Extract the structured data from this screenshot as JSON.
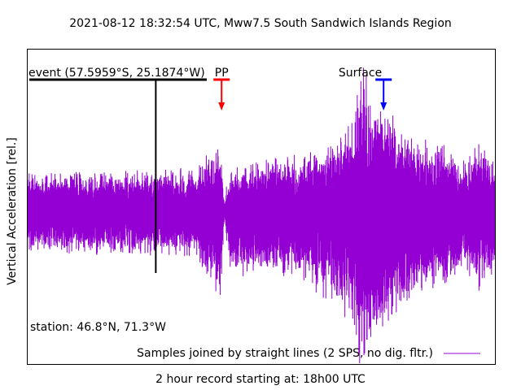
{
  "chart_data": {
    "type": "line",
    "title": "2021-08-12 18:32:54 UTC, Mww7.5 South Sandwich Islands Region",
    "xlabel": "2 hour record starting at: 18h00 UTC",
    "ylabel": "Vertical Acceleration [rel.]",
    "xlim": [
      0,
      120
    ],
    "ylim": [
      -1,
      1
    ],
    "grid": false,
    "legend_position": "bottom-right",
    "series": [
      {
        "name": "Samples joined by straight lines (2 SPS, no dig. fltr.)",
        "color": "#9400d3",
        "envelope": {
          "x": [
            0,
            25,
            43,
            44,
            48,
            49.5,
            50.5,
            52,
            70,
            76,
            80,
            84,
            85.5,
            88,
            92,
            96,
            100,
            104,
            108,
            112,
            116,
            120
          ],
          "upper": [
            0.25,
            0.26,
            0.28,
            0.3,
            0.45,
            0.38,
            0.08,
            0.3,
            0.36,
            0.42,
            0.48,
            0.65,
            1.0,
            0.78,
            0.7,
            0.55,
            0.5,
            0.45,
            0.4,
            0.32,
            0.45,
            0.35
          ],
          "lower": [
            -0.25,
            -0.27,
            -0.28,
            -0.32,
            -0.55,
            -0.6,
            -0.05,
            -0.4,
            -0.4,
            -0.55,
            -0.6,
            -0.78,
            -1.0,
            -0.9,
            -0.8,
            -0.62,
            -0.55,
            -0.5,
            -0.45,
            -0.38,
            -0.5,
            -0.4
          ]
        }
      }
    ],
    "annotations": [
      {
        "label": "event (57.5959°S, 25.1874°W)",
        "x": 32.9,
        "color": "#000000",
        "kind": "event"
      },
      {
        "label": "PP",
        "x": 49.8,
        "color": "#ff0000",
        "kind": "arrow"
      },
      {
        "label": "Surface",
        "x": 91.4,
        "color": "#0000ff",
        "kind": "arrow"
      }
    ],
    "station_label": "station: 46.8°N, 71.3°W"
  }
}
